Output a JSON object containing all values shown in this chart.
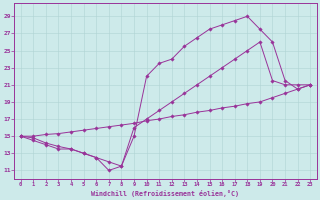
{
  "xlabel": "Windchill (Refroidissement éolien,°C)",
  "background_color": "#cdeaea",
  "line_color": "#993399",
  "grid_color": "#b0d4d4",
  "x_ticks": [
    0,
    1,
    2,
    3,
    4,
    5,
    6,
    7,
    8,
    9,
    10,
    11,
    12,
    13,
    14,
    15,
    16,
    17,
    18,
    19,
    20,
    21,
    22,
    23
  ],
  "y_ticks": [
    11,
    13,
    15,
    17,
    19,
    21,
    23,
    25,
    27,
    29
  ],
  "xlim": [
    -0.5,
    23.5
  ],
  "ylim": [
    10.0,
    30.5
  ],
  "line1_x": [
    0,
    1,
    2,
    3,
    4,
    5,
    6,
    7,
    8,
    9,
    10,
    11,
    12,
    13,
    14,
    15,
    16,
    17,
    18,
    19,
    20,
    21,
    22,
    23
  ],
  "line1_y": [
    15.0,
    14.5,
    14.0,
    13.5,
    13.5,
    13.0,
    12.5,
    11.0,
    11.5,
    16.0,
    17.0,
    18.0,
    19.0,
    20.0,
    21.0,
    22.0,
    23.0,
    24.0,
    25.0,
    26.0,
    21.5,
    21.0,
    21.0,
    21.0
  ],
  "line2_x": [
    0,
    1,
    2,
    3,
    4,
    5,
    6,
    7,
    8,
    9,
    10,
    11,
    12,
    13,
    14,
    15,
    16,
    17,
    18,
    19,
    20,
    21,
    22,
    23
  ],
  "line2_y": [
    15.0,
    14.8,
    14.2,
    13.8,
    13.5,
    13.0,
    12.5,
    12.0,
    11.5,
    15.0,
    22.0,
    23.5,
    24.0,
    25.5,
    26.5,
    27.5,
    28.0,
    28.5,
    29.0,
    27.5,
    26.0,
    21.5,
    20.5,
    21.0
  ],
  "line3_x": [
    0,
    1,
    2,
    3,
    4,
    5,
    6,
    7,
    8,
    9,
    10,
    11,
    12,
    13,
    14,
    15,
    16,
    17,
    18,
    19,
    20,
    21,
    22,
    23
  ],
  "line3_y": [
    15.0,
    15.0,
    15.2,
    15.3,
    15.5,
    15.7,
    15.9,
    16.1,
    16.3,
    16.5,
    16.8,
    17.0,
    17.3,
    17.5,
    17.8,
    18.0,
    18.3,
    18.5,
    18.8,
    19.0,
    19.5,
    20.0,
    20.5,
    21.0
  ]
}
